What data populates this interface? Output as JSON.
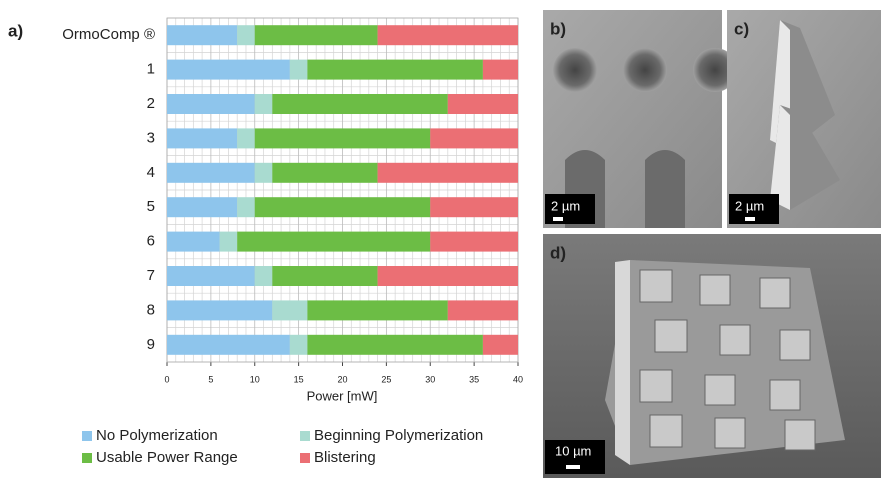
{
  "chart_data": {
    "type": "stacked-barh",
    "panel_label": "a)",
    "xlabel": "Power [mW]",
    "categories": [
      "OrmoComp ®",
      "1",
      "2",
      "3",
      "4",
      "5",
      "6",
      "7",
      "8",
      "9"
    ],
    "series": [
      {
        "name": "No Polymerization",
        "color": "#8ec5ec",
        "values": [
          8,
          14,
          10,
          8,
          10,
          8,
          6,
          10,
          12,
          14
        ]
      },
      {
        "name": "Beginning Polymerization",
        "color": "#a9dbd0",
        "values": [
          2,
          2,
          2,
          2,
          2,
          2,
          2,
          2,
          4,
          2
        ]
      },
      {
        "name": "Usable Power Range",
        "color": "#6cbd45",
        "values": [
          14,
          20,
          20,
          20,
          12,
          20,
          22,
          12,
          16,
          20
        ]
      },
      {
        "name": "Blistering",
        "color": "#eb6f74",
        "values": [
          16,
          4,
          8,
          10,
          16,
          10,
          10,
          16,
          8,
          4
        ]
      }
    ],
    "xlim": [
      0,
      40
    ],
    "xticks": [
      0,
      5,
      10,
      15,
      20,
      25,
      30,
      35,
      40
    ],
    "grid": true,
    "minor_grid": true
  },
  "panels": [
    {
      "label": "b)",
      "scale_bar": "2 µm"
    },
    {
      "label": "c)",
      "scale_bar": "2 µm"
    },
    {
      "label": "d)",
      "scale_bar": "10 µm"
    }
  ]
}
